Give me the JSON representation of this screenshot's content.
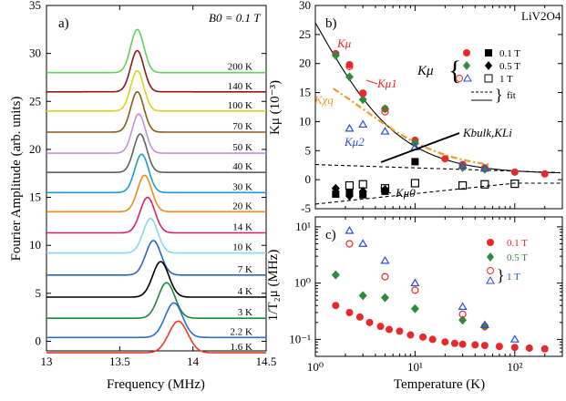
{
  "colors": {
    "c200": "#5fd35a",
    "c140": "#8b1a1a",
    "c100": "#e0d11a",
    "c70": "#8a5a1a",
    "c50": "#c48fd9",
    "c40": "#606060",
    "c30": "#1b9ad6",
    "c20": "#f08a1a",
    "c14": "#d6226e",
    "c10": "#86d7ef",
    "c7": "#2a66b8",
    "c4": "#000000",
    "c3": "#1d8a3a",
    "c2_2": "#2a6fd0",
    "c1_6": "#e83a2a",
    "red": "#e8282a",
    "green": "#2e8b3a",
    "blue": "#2a4fd0",
    "orange": "#f09a20"
  },
  "chart_data": [
    {
      "panel": "a)",
      "type": "line",
      "annotation": "B0 = 0.1 T",
      "xlabel": "Frequency (MHz)",
      "ylabel": "Fourier Amplitude (arb. units)",
      "xlim": [
        13,
        14.5
      ],
      "ylim": [
        -1,
        35
      ],
      "xticks": [
        "13",
        "13.5",
        "14",
        "14.5"
      ],
      "yticks": [
        "0",
        "5",
        "10",
        "15",
        "20",
        "25",
        "30",
        "35"
      ],
      "series": [
        {
          "name": "200 K",
          "color_key": "c200",
          "baseline": 28.0,
          "peak_x": 13.62,
          "amp": 4.5,
          "width": 0.045
        },
        {
          "name": "140 K",
          "color_key": "c140",
          "baseline": 26.0,
          "peak_x": 13.62,
          "amp": 4.3,
          "width": 0.045
        },
        {
          "name": "100 K",
          "color_key": "c100",
          "baseline": 24.0,
          "peak_x": 13.62,
          "amp": 4.2,
          "width": 0.045
        },
        {
          "name": "70 K",
          "color_key": "c70",
          "baseline": 21.8,
          "peak_x": 13.62,
          "amp": 4.2,
          "width": 0.045
        },
        {
          "name": "50 K",
          "color_key": "c50",
          "baseline": 19.6,
          "peak_x": 13.63,
          "amp": 4.1,
          "width": 0.045
        },
        {
          "name": "40 K",
          "color_key": "c40",
          "baseline": 17.6,
          "peak_x": 13.64,
          "amp": 4.0,
          "width": 0.045
        },
        {
          "name": "30 K",
          "color_key": "c30",
          "baseline": 15.5,
          "peak_x": 13.65,
          "amp": 4.0,
          "width": 0.047
        },
        {
          "name": "20 K",
          "color_key": "c20",
          "baseline": 13.5,
          "peak_x": 13.67,
          "amp": 3.8,
          "width": 0.048
        },
        {
          "name": "14 K",
          "color_key": "c14",
          "baseline": 11.3,
          "peak_x": 13.69,
          "amp": 3.7,
          "width": 0.05
        },
        {
          "name": "10 K",
          "color_key": "c10",
          "baseline": 9.2,
          "peak_x": 13.71,
          "amp": 3.6,
          "width": 0.05
        },
        {
          "name": "7 K",
          "color_key": "c7",
          "baseline": 6.9,
          "peak_x": 13.73,
          "amp": 3.6,
          "width": 0.052
        },
        {
          "name": "4 K",
          "color_key": "c4",
          "baseline": 4.6,
          "peak_x": 13.78,
          "amp": 3.7,
          "width": 0.055
        },
        {
          "name": "3 K",
          "color_key": "c3",
          "baseline": 2.4,
          "peak_x": 13.82,
          "amp": 3.7,
          "width": 0.057
        },
        {
          "name": "2.2 K",
          "color_key": "c2_2",
          "baseline": 0.4,
          "peak_x": 13.87,
          "amp": 3.6,
          "width": 0.06
        },
        {
          "name": "1.6 K",
          "color_key": "c1_6",
          "baseline": -1.2,
          "peak_x": 13.9,
          "amp": 3.3,
          "width": 0.065
        }
      ]
    },
    {
      "panel": "b)",
      "type": "scatter",
      "title": "LiV2O4",
      "xlabel": "Temperature (K)",
      "ylabel": "Kμ (10⁻³)",
      "xscale": "log",
      "xlim": [
        1,
        300
      ],
      "ylim": [
        -5,
        30
      ],
      "xticks": [
        "10⁰",
        "10¹",
        "10²"
      ],
      "yticks": [
        "-5",
        "0",
        "5",
        "10",
        "15",
        "20",
        "25",
        "30"
      ],
      "legend_title": "Kμ",
      "legend": [
        "0.1 T",
        "0.5 T",
        "1 T",
        "fit"
      ],
      "labels": [
        "Kμ",
        "Kμ1",
        "Kχq",
        "Kμ2",
        "Kμ0",
        "Kbulk,KLi"
      ],
      "series": [
        {
          "name": "0.1 T",
          "marker": "circle",
          "color_key": "red",
          "x": [
            1.6,
            2.2,
            3,
            5,
            10,
            20,
            30,
            50,
            100,
            200
          ],
          "y": [
            21.7,
            19.8,
            14.8,
            12.2,
            6.8,
            3.6,
            2.4,
            1.9,
            1.3,
            1.0
          ]
        },
        {
          "name": "0.5 T",
          "marker": "diamond",
          "color_key": "green",
          "x": [
            1.6,
            2.2,
            3,
            5,
            10,
            30,
            50
          ],
          "y": [
            21.4,
            17.7,
            13.8,
            12.2,
            6.3,
            2.1,
            1.8
          ]
        },
        {
          "name": "1 T",
          "marker": "circle-open",
          "color_key": "red",
          "x": [
            2.2,
            3,
            5,
            30,
            50
          ],
          "y": [
            19.5,
            14.9,
            11.7,
            2.6,
            2.0
          ]
        },
        {
          "name": "1 T (Kμ2)",
          "marker": "triangle-open",
          "color_key": "blue",
          "x": [
            2.2,
            3,
            5,
            10,
            30,
            50
          ],
          "y": [
            8.8,
            9.5,
            8.3,
            5.6,
            2.4,
            1.9
          ]
        },
        {
          "name": "0.1 T (Kμ0)",
          "marker": "square",
          "color_key": "black",
          "x": [
            1.6,
            2.2,
            3,
            5,
            10
          ],
          "y": [
            -2.5,
            -2.3,
            -2.6,
            -2.0,
            3.1
          ]
        },
        {
          "name": "0.5 T (Kμ0)",
          "marker": "diamond-filled",
          "color_key": "black",
          "x": [
            1.6,
            2.2,
            3,
            5
          ],
          "y": [
            -1.5,
            -2.8,
            -2.0,
            -1.7
          ]
        },
        {
          "name": "1 T (Kμ0)",
          "marker": "square-open",
          "color_key": "black",
          "x": [
            2.2,
            3,
            5,
            10,
            30,
            50,
            100
          ],
          "y": [
            -1.0,
            -0.8,
            -1.5,
            -0.6,
            -1.0,
            -0.8,
            -0.7
          ]
        }
      ]
    },
    {
      "panel": "c)",
      "type": "scatter",
      "xlabel": "Temperature (K)",
      "ylabel": "1/T₂μ (MHz)",
      "xscale": "log",
      "yscale": "log",
      "xlim": [
        1,
        300
      ],
      "ylim": [
        0.05,
        15
      ],
      "xticks": [
        "10⁰",
        "10¹",
        "10²"
      ],
      "yticks": [
        "10⁻¹",
        "10⁰",
        "10¹"
      ],
      "legend": [
        "0.1 T",
        "0.5 T",
        "1 T"
      ],
      "series": [
        {
          "name": "0.1 T",
          "marker": "circle",
          "color_key": "red",
          "x": [
            1.6,
            2.2,
            2.8,
            3.5,
            4.5,
            5.5,
            7,
            9,
            12,
            15,
            20,
            25,
            30,
            40,
            50,
            70,
            100,
            140,
            200
          ],
          "y": [
            0.4,
            0.3,
            0.25,
            0.2,
            0.17,
            0.15,
            0.14,
            0.12,
            0.11,
            0.1,
            0.09,
            0.085,
            0.082,
            0.08,
            0.078,
            0.075,
            0.072,
            0.07,
            0.068
          ]
        },
        {
          "name": "0.5 T",
          "marker": "diamond",
          "color_key": "green",
          "x": [
            1.6,
            3,
            5,
            10,
            30,
            50
          ],
          "y": [
            1.4,
            0.6,
            0.55,
            0.35,
            0.22,
            0.17
          ]
        },
        {
          "name": "1 T",
          "marker": "circle-open",
          "color_key": "red",
          "x": [
            2.2,
            5,
            10,
            30,
            50
          ],
          "y": [
            5.0,
            1.3,
            0.75,
            0.28,
            0.17
          ]
        },
        {
          "name": "1 T",
          "marker": "triangle-open",
          "color_key": "blue",
          "x": [
            2.2,
            3,
            5,
            10,
            30,
            50,
            100
          ],
          "y": [
            8.5,
            5.0,
            2.5,
            1.0,
            0.38,
            0.18,
            0.1
          ]
        }
      ]
    }
  ]
}
